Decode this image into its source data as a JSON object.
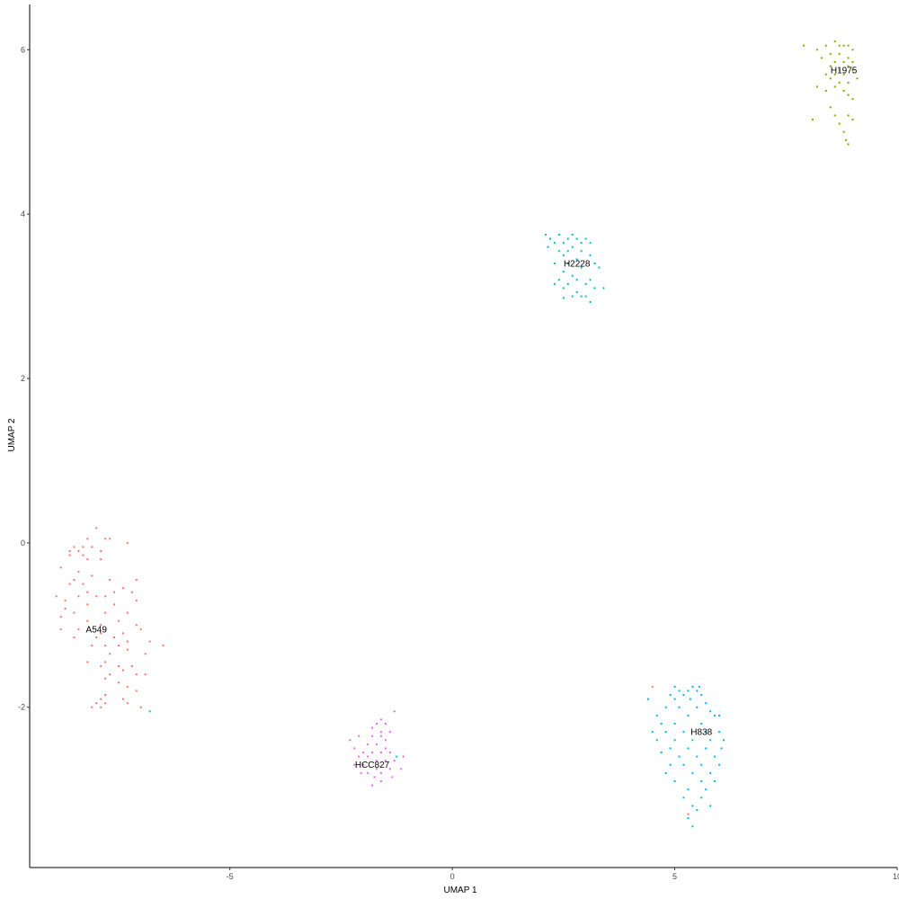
{
  "chart_data": {
    "type": "scatter",
    "title": "",
    "xlabel": "UMAP 1",
    "ylabel": "UMAP 2",
    "xlim": [
      -9.5,
      10.0
    ],
    "ylim": [
      -3.95,
      6.55
    ],
    "xticks": [
      -5,
      0,
      5,
      10
    ],
    "yticks": [
      -2,
      0,
      2,
      4,
      6
    ],
    "grid": false,
    "legend": "none",
    "series": [
      {
        "name": "A549",
        "color": "#F8766D",
        "label_pos": [
          -8.0,
          -1.05
        ],
        "points": [
          [
            -8.0,
            0.18
          ],
          [
            -7.8,
            0.05
          ],
          [
            -7.7,
            0.05
          ],
          [
            -7.3,
            0.0
          ],
          [
            -8.2,
            0.05
          ],
          [
            -8.5,
            -0.05
          ],
          [
            -8.3,
            -0.05
          ],
          [
            -8.1,
            -0.05
          ],
          [
            -7.9,
            -0.1
          ],
          [
            -8.6,
            -0.1
          ],
          [
            -8.4,
            -0.1
          ],
          [
            -8.6,
            -0.15
          ],
          [
            -8.3,
            -0.15
          ],
          [
            -7.9,
            -0.2
          ],
          [
            -8.2,
            -0.2
          ],
          [
            -8.8,
            -0.3
          ],
          [
            -8.4,
            -0.35
          ],
          [
            -8.5,
            -0.45
          ],
          [
            -8.1,
            -0.4
          ],
          [
            -8.6,
            -0.5
          ],
          [
            -8.3,
            -0.5
          ],
          [
            -7.7,
            -0.45
          ],
          [
            -7.4,
            -0.55
          ],
          [
            -8.2,
            -0.6
          ],
          [
            -8.9,
            -0.65
          ],
          [
            -8.7,
            -0.7
          ],
          [
            -8.4,
            -0.65
          ],
          [
            -8.0,
            -0.65
          ],
          [
            -7.6,
            -0.6
          ],
          [
            -7.2,
            -0.6
          ],
          [
            -7.8,
            -0.65
          ],
          [
            -8.2,
            -0.75
          ],
          [
            -8.7,
            -0.8
          ],
          [
            -7.6,
            -0.75
          ],
          [
            -7.1,
            -0.7
          ],
          [
            -8.8,
            -0.9
          ],
          [
            -8.5,
            -0.85
          ],
          [
            -7.8,
            -0.85
          ],
          [
            -7.3,
            -0.85
          ],
          [
            -7.1,
            -0.45
          ],
          [
            -8.2,
            -0.95
          ],
          [
            -7.9,
            -1.0
          ],
          [
            -7.5,
            -0.95
          ],
          [
            -7.1,
            -1.0
          ],
          [
            -8.8,
            -1.05
          ],
          [
            -8.4,
            -1.05
          ],
          [
            -7.9,
            -1.1
          ],
          [
            -7.4,
            -1.1
          ],
          [
            -7.0,
            -1.05
          ],
          [
            -8.5,
            -1.15
          ],
          [
            -8.0,
            -1.15
          ],
          [
            -7.6,
            -1.15
          ],
          [
            -7.3,
            -1.2
          ],
          [
            -8.1,
            -1.25
          ],
          [
            -7.8,
            -1.25
          ],
          [
            -6.8,
            -1.2
          ],
          [
            -7.5,
            -1.25
          ],
          [
            -6.5,
            -1.25
          ],
          [
            -7.3,
            -1.3
          ],
          [
            -7.7,
            -1.35
          ],
          [
            -6.9,
            -1.35
          ],
          [
            -8.2,
            -1.45
          ],
          [
            -7.8,
            -1.45
          ],
          [
            -7.5,
            -1.5
          ],
          [
            -7.2,
            -1.5
          ],
          [
            -7.9,
            -1.5
          ],
          [
            -7.4,
            -1.55
          ],
          [
            -7.7,
            -1.6
          ],
          [
            -7.1,
            -1.6
          ],
          [
            -6.9,
            -1.6
          ],
          [
            -7.8,
            -1.65
          ],
          [
            -7.5,
            -1.7
          ],
          [
            -7.3,
            -1.75
          ],
          [
            -7.1,
            -1.8
          ],
          [
            -7.8,
            -1.85
          ],
          [
            -7.4,
            -1.9
          ],
          [
            -7.9,
            -1.9
          ],
          [
            -8.0,
            -1.95
          ],
          [
            -7.8,
            -1.95
          ],
          [
            -7.3,
            -1.95
          ],
          [
            -7.0,
            -2.0
          ],
          [
            -8.1,
            -2.0
          ],
          [
            -7.9,
            -2.0
          ]
        ]
      },
      {
        "name": "HCC827",
        "color": "#E76BF3",
        "label_pos": [
          -1.8,
          -2.7
        ],
        "points": [
          [
            -1.3,
            -2.05
          ],
          [
            -1.6,
            -2.15
          ],
          [
            -1.7,
            -2.2
          ],
          [
            -1.5,
            -2.2
          ],
          [
            -1.8,
            -2.25
          ],
          [
            -1.6,
            -2.3
          ],
          [
            -1.4,
            -2.3
          ],
          [
            -2.1,
            -2.35
          ],
          [
            -1.8,
            -2.35
          ],
          [
            -1.6,
            -2.35
          ],
          [
            -1.5,
            -2.4
          ],
          [
            -2.3,
            -2.4
          ],
          [
            -1.9,
            -2.45
          ],
          [
            -1.7,
            -2.45
          ],
          [
            -1.5,
            -2.5
          ],
          [
            -2.2,
            -2.5
          ],
          [
            -2.0,
            -2.55
          ],
          [
            -1.8,
            -2.55
          ],
          [
            -1.6,
            -2.55
          ],
          [
            -1.4,
            -2.55
          ],
          [
            -1.1,
            -2.6
          ],
          [
            -2.1,
            -2.6
          ],
          [
            -1.9,
            -2.6
          ],
          [
            -1.7,
            -2.65
          ],
          [
            -1.5,
            -2.65
          ],
          [
            -1.3,
            -2.65
          ],
          [
            -2.2,
            -2.7
          ],
          [
            -2.0,
            -2.7
          ],
          [
            -1.7,
            -2.75
          ],
          [
            -1.4,
            -2.75
          ],
          [
            -1.15,
            -2.75
          ],
          [
            -1.9,
            -2.8
          ],
          [
            -1.6,
            -2.8
          ],
          [
            -2.05,
            -2.8
          ],
          [
            -1.75,
            -2.85
          ],
          [
            -1.35,
            -2.85
          ],
          [
            -1.6,
            -2.9
          ],
          [
            -1.8,
            -2.95
          ]
        ]
      },
      {
        "name": "H2228",
        "color": "#00BFC4",
        "label_pos": [
          2.8,
          3.4
        ],
        "points": [
          [
            2.1,
            3.75
          ],
          [
            2.4,
            3.75
          ],
          [
            2.7,
            3.75
          ],
          [
            2.2,
            3.7
          ],
          [
            2.6,
            3.7
          ],
          [
            2.8,
            3.7
          ],
          [
            3.0,
            3.7
          ],
          [
            2.3,
            3.65
          ],
          [
            2.5,
            3.65
          ],
          [
            2.9,
            3.65
          ],
          [
            3.1,
            3.65
          ],
          [
            2.15,
            3.6
          ],
          [
            2.7,
            3.6
          ],
          [
            2.4,
            3.55
          ],
          [
            2.6,
            3.55
          ],
          [
            2.9,
            3.55
          ],
          [
            3.1,
            3.5
          ],
          [
            2.5,
            3.5
          ],
          [
            2.8,
            3.45
          ],
          [
            2.3,
            3.4
          ],
          [
            3.2,
            3.4
          ],
          [
            2.6,
            3.4
          ],
          [
            2.9,
            3.35
          ],
          [
            3.3,
            3.35
          ],
          [
            2.5,
            3.3
          ],
          [
            2.7,
            3.25
          ],
          [
            2.4,
            3.2
          ],
          [
            3.1,
            3.2
          ],
          [
            2.8,
            3.2
          ],
          [
            2.3,
            3.15
          ],
          [
            2.6,
            3.15
          ],
          [
            3.0,
            3.15
          ],
          [
            3.2,
            3.1
          ],
          [
            2.5,
            3.1
          ],
          [
            2.8,
            3.05
          ],
          [
            3.4,
            3.1
          ],
          [
            2.7,
            3.0
          ],
          [
            2.9,
            3.0
          ],
          [
            3.0,
            3.0
          ],
          [
            2.5,
            2.98
          ],
          [
            3.1,
            2.93
          ]
        ]
      },
      {
        "name": "H1975",
        "color": "#7CAE00",
        "label_pos": [
          8.8,
          5.75
        ],
        "points": [
          [
            7.9,
            6.05
          ],
          [
            8.4,
            6.05
          ],
          [
            8.6,
            6.1
          ],
          [
            8.7,
            6.05
          ],
          [
            8.8,
            6.05
          ],
          [
            8.9,
            6.05
          ],
          [
            9.0,
            6.0
          ],
          [
            8.2,
            6.0
          ],
          [
            8.5,
            5.95
          ],
          [
            8.7,
            5.95
          ],
          [
            8.9,
            5.9
          ],
          [
            8.3,
            5.9
          ],
          [
            8.6,
            5.85
          ],
          [
            8.8,
            5.85
          ],
          [
            9.0,
            5.85
          ],
          [
            8.5,
            5.8
          ],
          [
            8.9,
            5.8
          ],
          [
            8.7,
            5.75
          ],
          [
            9.0,
            5.75
          ],
          [
            8.4,
            5.7
          ],
          [
            8.6,
            5.7
          ],
          [
            8.8,
            5.7
          ],
          [
            9.1,
            5.65
          ],
          [
            8.5,
            5.65
          ],
          [
            8.7,
            5.6
          ],
          [
            8.9,
            5.6
          ],
          [
            8.2,
            5.55
          ],
          [
            8.6,
            5.55
          ],
          [
            8.4,
            5.5
          ],
          [
            8.8,
            5.5
          ],
          [
            8.9,
            5.45
          ],
          [
            9.0,
            5.4
          ],
          [
            8.5,
            5.3
          ],
          [
            8.6,
            5.2
          ],
          [
            8.1,
            5.15
          ],
          [
            8.9,
            5.2
          ],
          [
            9.0,
            5.15
          ],
          [
            8.7,
            5.1
          ],
          [
            8.8,
            5.0
          ],
          [
            8.85,
            4.9
          ],
          [
            8.9,
            4.85
          ]
        ]
      },
      {
        "name": "H838",
        "color": "#00B6EB",
        "label_pos": [
          5.6,
          -2.3
        ],
        "points": [
          [
            5.0,
            -1.75
          ],
          [
            5.4,
            -1.75
          ],
          [
            5.55,
            -1.75
          ],
          [
            5.1,
            -1.8
          ],
          [
            5.3,
            -1.8
          ],
          [
            5.5,
            -1.8
          ],
          [
            4.9,
            -1.85
          ],
          [
            5.2,
            -1.85
          ],
          [
            5.6,
            -1.85
          ],
          [
            4.4,
            -1.9
          ],
          [
            5.0,
            -1.9
          ],
          [
            5.35,
            -1.9
          ],
          [
            5.7,
            -1.95
          ],
          [
            4.8,
            -2.0
          ],
          [
            5.1,
            -2.0
          ],
          [
            5.5,
            -2.0
          ],
          [
            5.8,
            -2.05
          ],
          [
            4.6,
            -2.1
          ],
          [
            5.3,
            -2.1
          ],
          [
            5.9,
            -2.1
          ],
          [
            6.0,
            -2.1
          ],
          [
            4.7,
            -2.2
          ],
          [
            5.0,
            -2.2
          ],
          [
            5.6,
            -2.2
          ],
          [
            4.5,
            -2.3
          ],
          [
            4.8,
            -2.3
          ],
          [
            5.2,
            -2.3
          ],
          [
            5.7,
            -2.3
          ],
          [
            6.0,
            -2.3
          ],
          [
            4.6,
            -2.4
          ],
          [
            5.0,
            -2.4
          ],
          [
            5.4,
            -2.4
          ],
          [
            5.8,
            -2.4
          ],
          [
            6.1,
            -2.4
          ],
          [
            4.9,
            -2.5
          ],
          [
            5.3,
            -2.5
          ],
          [
            5.7,
            -2.5
          ],
          [
            6.05,
            -2.5
          ],
          [
            4.7,
            -2.55
          ],
          [
            5.1,
            -2.6
          ],
          [
            5.5,
            -2.6
          ],
          [
            5.9,
            -2.6
          ],
          [
            4.9,
            -2.7
          ],
          [
            5.2,
            -2.7
          ],
          [
            5.6,
            -2.7
          ],
          [
            6.0,
            -2.7
          ],
          [
            4.8,
            -2.8
          ],
          [
            5.4,
            -2.8
          ],
          [
            5.8,
            -2.8
          ],
          [
            5.0,
            -2.9
          ],
          [
            5.6,
            -2.9
          ],
          [
            5.9,
            -2.9
          ],
          [
            5.3,
            -3.0
          ],
          [
            5.7,
            -3.0
          ],
          [
            5.2,
            -3.1
          ],
          [
            5.6,
            -3.1
          ],
          [
            5.4,
            -3.2
          ],
          [
            5.8,
            -3.2
          ],
          [
            5.5,
            -3.25
          ],
          [
            5.3,
            -3.35
          ],
          [
            5.4,
            -3.45
          ]
        ]
      }
    ],
    "extra_points": [
      {
        "x": -6.8,
        "y": -2.05,
        "color": "#00B6EB"
      },
      {
        "x": 4.5,
        "y": -1.75,
        "color": "#F8766D"
      },
      {
        "x": 5.3,
        "y": -3.3,
        "color": "#F8766D"
      },
      {
        "x": -1.25,
        "y": -2.6,
        "color": "#00BFC4"
      }
    ]
  }
}
